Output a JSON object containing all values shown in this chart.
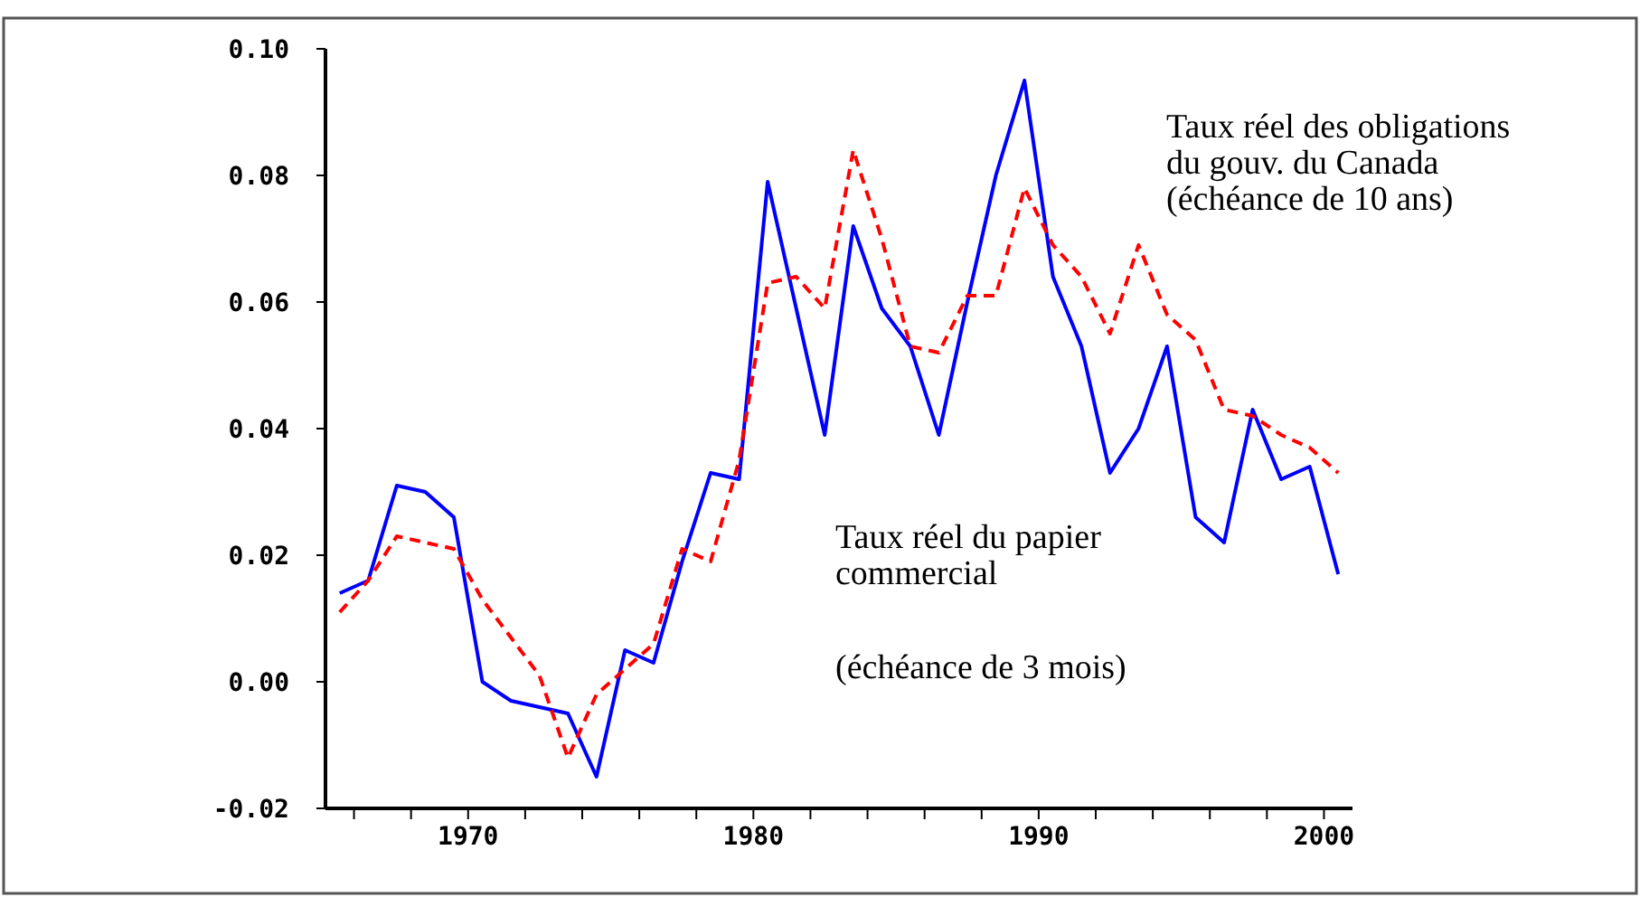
{
  "chart_data": {
    "type": "line",
    "x": [
      1965.5,
      1966.5,
      1967.5,
      1968.5,
      1969.5,
      1970.5,
      1971.5,
      1972.5,
      1973.5,
      1974.5,
      1975.5,
      1976.5,
      1977.5,
      1978.5,
      1979.5,
      1980.5,
      1981.5,
      1982.5,
      1983.5,
      1984.5,
      1985.5,
      1986.5,
      1987.5,
      1988.5,
      1989.5,
      1990.5,
      1991.5,
      1992.5,
      1993.5,
      1994.5,
      1995.5,
      1996.5,
      1997.5,
      1998.5,
      1999.5,
      2000.5
    ],
    "series": [
      {
        "name": "Taux réel du papier\ncommercial\n\n(échéance de 3 mois)",
        "color": "#0000ff",
        "line_style": "solid",
        "values": [
          0.014,
          0.016,
          0.031,
          0.03,
          0.026,
          0.0,
          -0.003,
          -0.004,
          -0.005,
          -0.015,
          0.005,
          0.003,
          0.019,
          0.033,
          0.032,
          0.079,
          0.059,
          0.039,
          0.072,
          0.059,
          0.053,
          0.039,
          0.06,
          0.08,
          0.095,
          0.064,
          0.053,
          0.033,
          0.04,
          0.053,
          0.026,
          0.022,
          0.043,
          0.032,
          0.034,
          0.017
        ]
      },
      {
        "name": "Taux réel des obligations\ndu gouv. du Canada\n(échéance de 10 ans)",
        "color": "#ff0000",
        "line_style": "dashed",
        "values": [
          0.011,
          0.016,
          0.023,
          0.022,
          0.021,
          0.013,
          0.007,
          0.001,
          -0.012,
          -0.002,
          0.002,
          0.006,
          0.021,
          0.019,
          0.035,
          0.063,
          0.064,
          0.059,
          0.084,
          0.07,
          0.053,
          0.052,
          0.061,
          0.061,
          0.078,
          0.069,
          0.064,
          0.055,
          0.069,
          0.058,
          0.054,
          0.043,
          0.042,
          0.039,
          0.037,
          0.033
        ]
      }
    ],
    "xlim": [
      1965,
      2001
    ],
    "xticks": [
      {
        "value": 1966,
        "label": null
      },
      {
        "value": 1968,
        "label": null
      },
      1970,
      {
        "value": 1972,
        "label": null
      },
      {
        "value": 1974,
        "label": null
      },
      {
        "value": 1976,
        "label": null
      },
      {
        "value": 1978,
        "label": null
      },
      1980,
      {
        "value": 1982,
        "label": null
      },
      {
        "value": 1984,
        "label": null
      },
      {
        "value": 1986,
        "label": null
      },
      {
        "value": 1988,
        "label": null
      },
      1990,
      {
        "value": 1992,
        "label": null
      },
      {
        "value": 1994,
        "label": null
      },
      {
        "value": 1996,
        "label": null
      },
      {
        "value": 1998,
        "label": null
      },
      2000
    ],
    "ylim": [
      -0.02,
      0.1
    ],
    "yticks": [
      {
        "value": -0.02,
        "label": "-0.02"
      },
      {
        "value": 0,
        "label": "0.00"
      },
      {
        "value": 0.02,
        "label": "0.02"
      },
      {
        "value": 0.04,
        "label": "0.04"
      },
      {
        "value": 0.06,
        "label": "0.06"
      },
      {
        "value": 0.08,
        "label": "0.08"
      },
      {
        "value": 0.1,
        "label": "0.10"
      }
    ],
    "grid": false,
    "legend": false
  }
}
